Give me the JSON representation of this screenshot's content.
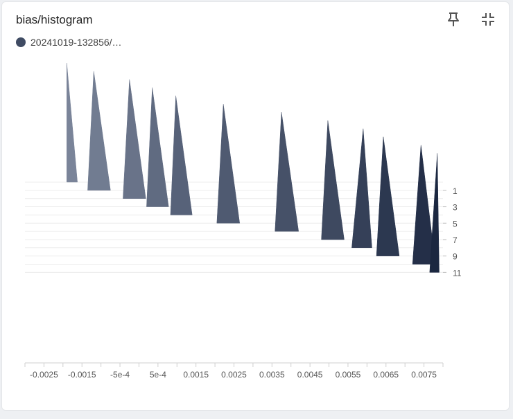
{
  "header": {
    "title": "bias/histogram",
    "pin_icon": "pin-icon",
    "collapse_icon": "fullscreen-exit-icon"
  },
  "legend": {
    "run_name": "20241019-132856/…",
    "color": "#3f4b63"
  },
  "chart_data": {
    "type": "histogram-offset",
    "title": "bias/histogram",
    "x_ticks": [
      "-0.0025",
      "-0.0015",
      "-5e-4",
      "5e-4",
      "0.0015",
      "0.0025",
      "0.0035",
      "0.0045",
      "0.0055",
      "0.0065",
      "0.0075"
    ],
    "x_tick_values": [
      -0.0025,
      -0.0015,
      -0.0005,
      0.0005,
      0.0015,
      0.0025,
      0.0035,
      0.0045,
      0.0055,
      0.0065,
      0.0075
    ],
    "xlim": [
      -0.003,
      0.008
    ],
    "y_ticks": [
      "1",
      "3",
      "5",
      "7",
      "9",
      "11"
    ],
    "y_tick_values": [
      1,
      3,
      5,
      7,
      9,
      11
    ],
    "ylim": [
      0,
      11
    ],
    "series_color_light": "#7a8499",
    "series_color_dark": "#1b2740",
    "steps": [
      {
        "step": 0,
        "x_left": -0.0019,
        "x_peak": -0.0019,
        "x_right": -0.00162
      },
      {
        "step": 1,
        "x_left": -0.00135,
        "x_peak": -0.00119,
        "x_right": -0.00075
      },
      {
        "step": 2,
        "x_left": -0.00042,
        "x_peak": -0.00025,
        "x_right": 0.00018
      },
      {
        "step": 3,
        "x_left": 0.0002,
        "x_peak": 0.00035,
        "x_right": 0.00078
      },
      {
        "step": 4,
        "x_left": 0.00083,
        "x_peak": 0.00097,
        "x_right": 0.0014
      },
      {
        "step": 5,
        "x_left": 0.00205,
        "x_peak": 0.00222,
        "x_right": 0.00265
      },
      {
        "step": 6,
        "x_left": 0.00358,
        "x_peak": 0.00375,
        "x_right": 0.0042
      },
      {
        "step": 7,
        "x_left": 0.0048,
        "x_peak": 0.00497,
        "x_right": 0.0054
      },
      {
        "step": 8,
        "x_left": 0.0056,
        "x_peak": 0.0059,
        "x_right": 0.00613
      },
      {
        "step": 9,
        "x_left": 0.00625,
        "x_peak": 0.00643,
        "x_right": 0.00685
      },
      {
        "step": 10,
        "x_left": 0.0072,
        "x_peak": 0.00742,
        "x_right": 0.0078
      },
      {
        "step": 11,
        "x_left": 0.00765,
        "x_peak": 0.00785,
        "x_right": 0.0079
      }
    ]
  }
}
